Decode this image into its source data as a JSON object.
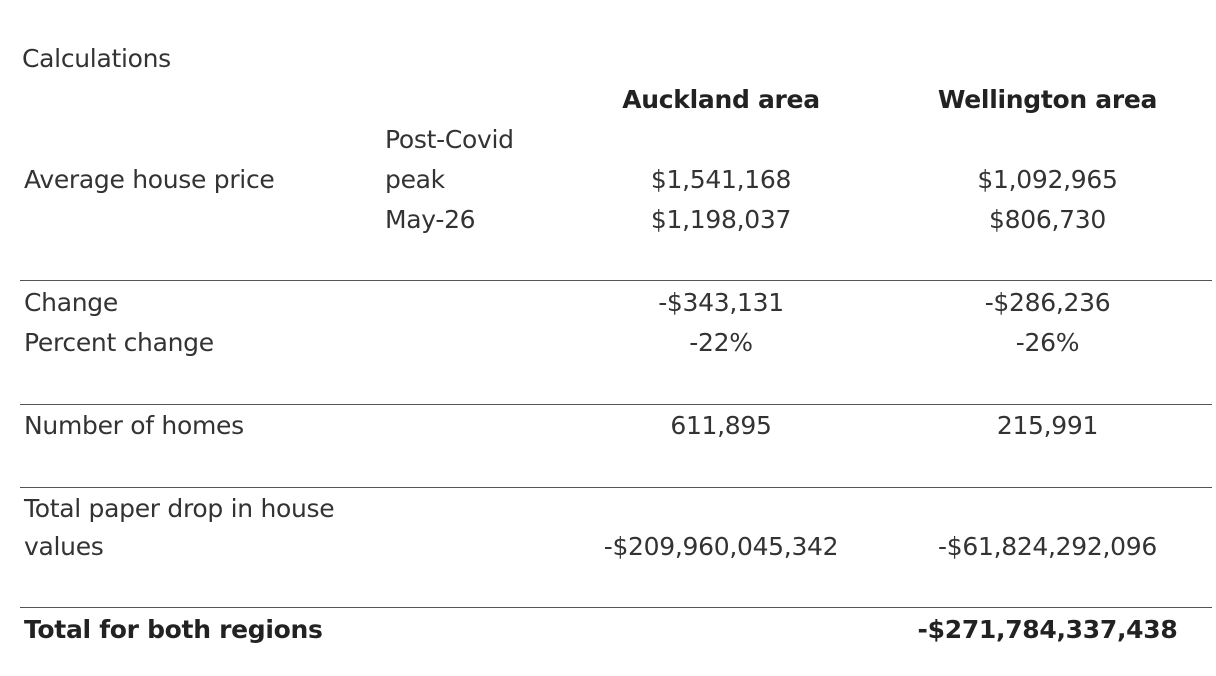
{
  "title": "Calculations",
  "columns": [
    "Auckland area",
    "Wellington area"
  ],
  "average_price": {
    "label": "Average house price",
    "rows": [
      {
        "period_line1": "Post-Covid",
        "period_line2": "peak",
        "auckland": "$1,541,168",
        "wellington": "$1,092,965"
      },
      {
        "period": "May-26",
        "auckland": "$1,198,037",
        "wellington": "$806,730"
      }
    ]
  },
  "change": {
    "label": "Change",
    "auckland": "-$343,131",
    "wellington": "-$286,236"
  },
  "percent_change": {
    "label": "Percent change",
    "auckland": "-22%",
    "wellington": "-26%"
  },
  "homes": {
    "label": "Number of homes",
    "auckland": "611,895",
    "wellington": "215,991"
  },
  "paper_drop": {
    "label_line1": "Total paper drop in house",
    "label_line2": "values",
    "auckland": "-$209,960,045,342",
    "wellington": "-$61,824,292,096"
  },
  "total": {
    "label": "Total for both regions",
    "value": "-$271,784,337,438"
  }
}
